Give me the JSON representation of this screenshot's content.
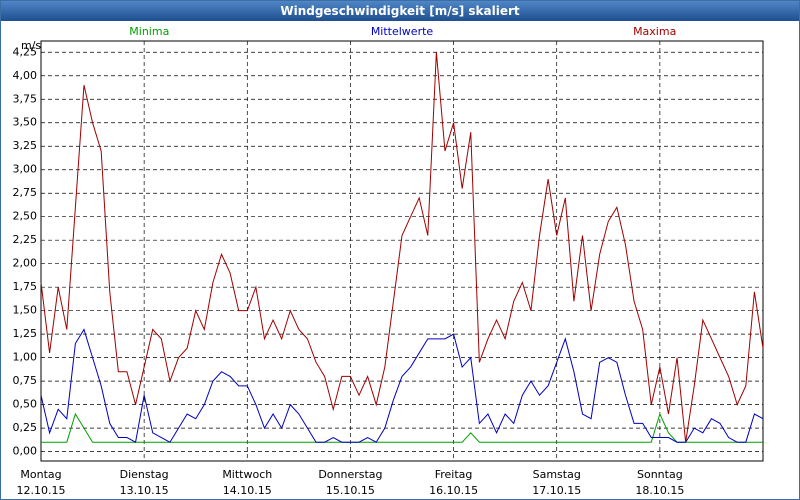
{
  "chart_data": {
    "type": "line",
    "title": "Windgeschwindigkeit [m/s] skaliert",
    "y_unit": "m/s",
    "x": [
      0,
      2,
      4,
      6,
      8,
      10,
      12,
      14,
      16,
      18,
      20,
      22,
      24,
      26,
      28,
      30,
      32,
      34,
      36,
      38,
      40,
      42,
      44,
      46,
      48,
      50,
      52,
      54,
      56,
      58,
      60,
      62,
      64,
      66,
      68,
      70,
      72,
      74,
      76,
      78,
      80,
      82,
      84,
      86,
      88,
      90,
      92,
      94,
      96,
      98,
      100,
      102,
      104,
      106,
      108,
      110,
      112,
      114,
      116,
      118,
      120,
      122,
      124,
      126,
      128,
      130,
      132,
      134,
      136,
      138,
      140,
      142,
      144,
      146,
      148,
      150,
      152,
      154,
      156,
      158,
      160,
      162,
      164,
      166,
      168
    ],
    "xlim": [
      0,
      168
    ],
    "xticks": [
      {
        "value": 0,
        "label": "Montag"
      },
      {
        "value": 24,
        "label": "Dienstag"
      },
      {
        "value": 48,
        "label": "Mittwoch"
      },
      {
        "value": 72,
        "label": "Donnerstag"
      },
      {
        "value": 96,
        "label": "Freitag"
      },
      {
        "value": 120,
        "label": "Samstag"
      },
      {
        "value": 144,
        "label": "Sonntag"
      }
    ],
    "xtick_dates": [
      "12.10.15",
      "13.10.15",
      "14.10.15",
      "15.10.15",
      "16.10.15",
      "17.10.15",
      "18.10.15"
    ],
    "ylim": [
      -0.1,
      4.37
    ],
    "yticks": [
      {
        "value": 0,
        "label": "0,00"
      },
      {
        "value": 0.25,
        "label": "0,25"
      },
      {
        "value": 0.5,
        "label": "0,50"
      },
      {
        "value": 0.75,
        "label": "0,75"
      },
      {
        "value": 1,
        "label": "1,00"
      },
      {
        "value": 1.25,
        "label": "1,25"
      },
      {
        "value": 1.5,
        "label": "1,50"
      },
      {
        "value": 1.75,
        "label": "1,75"
      },
      {
        "value": 2,
        "label": "2,00"
      },
      {
        "value": 2.25,
        "label": "2,25"
      },
      {
        "value": 2.5,
        "label": "2,50"
      },
      {
        "value": 2.75,
        "label": "2,75"
      },
      {
        "value": 3,
        "label": "3,00"
      },
      {
        "value": 3.25,
        "label": "3,25"
      },
      {
        "value": 3.5,
        "label": "3,50"
      },
      {
        "value": 3.75,
        "label": "3,75"
      },
      {
        "value": 4,
        "label": "4,00"
      },
      {
        "value": 4.25,
        "label": "4,25"
      }
    ],
    "grid": true,
    "series": [
      {
        "name": "Minima",
        "color": "#00a000",
        "values": [
          0.1,
          0.1,
          0.1,
          0.1,
          0.4,
          0.25,
          0.1,
          0.1,
          0.1,
          0.1,
          0.1,
          0.1,
          0.1,
          0.1,
          0.1,
          0.1,
          0.1,
          0.1,
          0.1,
          0.1,
          0.1,
          0.1,
          0.1,
          0.1,
          0.1,
          0.1,
          0.1,
          0.1,
          0.1,
          0.1,
          0.1,
          0.1,
          0.1,
          0.1,
          0.1,
          0.1,
          0.1,
          0.1,
          0.1,
          0.1,
          0.1,
          0.1,
          0.1,
          0.1,
          0.1,
          0.1,
          0.1,
          0.1,
          0.1,
          0.1,
          0.2,
          0.1,
          0.1,
          0.1,
          0.1,
          0.1,
          0.1,
          0.1,
          0.1,
          0.1,
          0.1,
          0.1,
          0.1,
          0.1,
          0.1,
          0.1,
          0.1,
          0.1,
          0.1,
          0.1,
          0.1,
          0.1,
          0.4,
          0.2,
          0.1,
          0.1,
          0.1,
          0.1,
          0.1,
          0.1,
          0.1,
          0.1,
          0.1,
          0.1,
          0.1
        ]
      },
      {
        "name": "Mittelwerte",
        "color": "#0000c0",
        "values": [
          0.6,
          0.2,
          0.45,
          0.35,
          1.15,
          1.3,
          1.0,
          0.7,
          0.3,
          0.15,
          0.15,
          0.1,
          0.6,
          0.2,
          0.15,
          0.1,
          0.25,
          0.4,
          0.35,
          0.5,
          0.75,
          0.85,
          0.8,
          0.7,
          0.7,
          0.5,
          0.25,
          0.4,
          0.25,
          0.5,
          0.4,
          0.25,
          0.1,
          0.1,
          0.15,
          0.1,
          0.1,
          0.1,
          0.15,
          0.1,
          0.25,
          0.55,
          0.8,
          0.9,
          1.05,
          1.2,
          1.2,
          1.2,
          1.25,
          0.9,
          1.0,
          0.3,
          0.4,
          0.2,
          0.4,
          0.3,
          0.6,
          0.75,
          0.6,
          0.7,
          0.95,
          1.2,
          0.85,
          0.4,
          0.35,
          0.95,
          1.0,
          0.95,
          0.6,
          0.3,
          0.3,
          0.15,
          0.15,
          0.15,
          0.1,
          0.1,
          0.25,
          0.2,
          0.35,
          0.3,
          0.15,
          0.1,
          0.1,
          0.4,
          0.35
        ]
      },
      {
        "name": "Maxima",
        "color": "#a00000",
        "values": [
          1.8,
          1.05,
          1.75,
          1.3,
          2.6,
          3.9,
          3.5,
          3.2,
          1.7,
          0.85,
          0.85,
          0.5,
          0.9,
          1.3,
          1.2,
          0.75,
          1.0,
          1.1,
          1.5,
          1.3,
          1.8,
          2.1,
          1.9,
          1.5,
          1.5,
          1.75,
          1.2,
          1.4,
          1.2,
          1.5,
          1.3,
          1.2,
          0.95,
          0.8,
          0.45,
          0.8,
          0.8,
          0.6,
          0.8,
          0.5,
          0.9,
          1.6,
          2.3,
          2.5,
          2.7,
          2.3,
          4.25,
          3.2,
          3.5,
          2.8,
          3.4,
          0.95,
          1.2,
          1.4,
          1.2,
          1.6,
          1.8,
          1.5,
          2.3,
          2.9,
          2.3,
          2.7,
          1.6,
          2.3,
          1.5,
          2.1,
          2.45,
          2.6,
          2.2,
          1.6,
          1.3,
          0.5,
          0.9,
          0.4,
          1.0,
          0.1,
          0.7,
          1.4,
          1.2,
          1.0,
          0.8,
          0.5,
          0.7,
          1.7,
          1.1
        ]
      }
    ]
  }
}
